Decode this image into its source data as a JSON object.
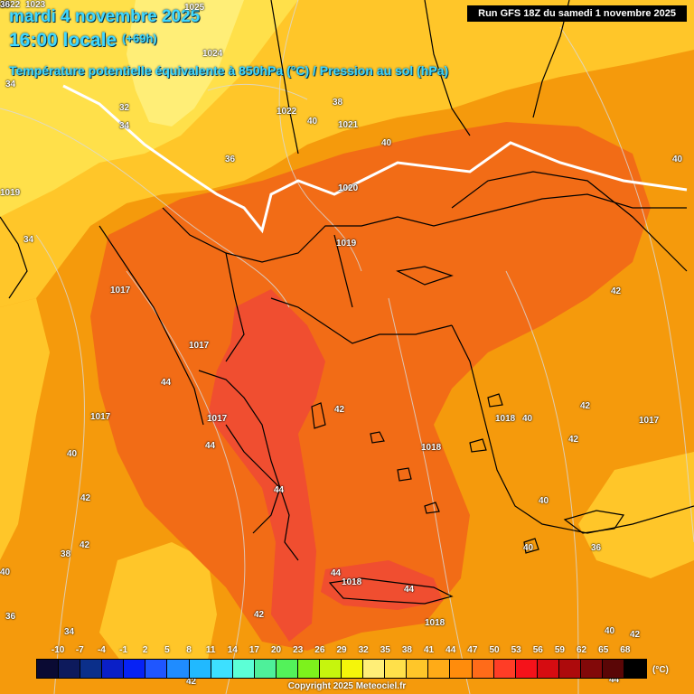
{
  "header": {
    "date": "mardi 4 novembre 2025",
    "time": "16:00 locale",
    "lead": "(+69h)",
    "subtitle": "Température potentielle équivalente à 850hPa (°C) / Pression au sol (hPa)"
  },
  "run_info": "Run GFS 18Z du samedi 1 novembre 2025",
  "labels": [
    {
      "text": "1022"
    },
    {
      "text": "1023"
    },
    {
      "text": "1025"
    },
    {
      "text": "1024"
    },
    {
      "text": "1022"
    },
    {
      "text": "1021"
    },
    {
      "text": "1020"
    },
    {
      "text": "1019"
    },
    {
      "text": "1019"
    },
    {
      "text": "1017"
    },
    {
      "text": "1017"
    },
    {
      "text": "1017"
    },
    {
      "text": "1017"
    },
    {
      "text": "1018"
    },
    {
      "text": "1018"
    },
    {
      "text": "1017"
    },
    {
      "text": "1018"
    },
    {
      "text": "1018"
    },
    {
      "text": "34"
    },
    {
      "text": "32"
    },
    {
      "text": "34"
    },
    {
      "text": "36"
    },
    {
      "text": "38"
    },
    {
      "text": "40"
    },
    {
      "text": "40"
    },
    {
      "text": "40"
    },
    {
      "text": "34"
    },
    {
      "text": "42"
    },
    {
      "text": "44"
    },
    {
      "text": "40"
    },
    {
      "text": "42"
    },
    {
      "text": "42"
    },
    {
      "text": "38"
    },
    {
      "text": "40"
    },
    {
      "text": "36"
    },
    {
      "text": "38"
    },
    {
      "text": "36"
    },
    {
      "text": "34"
    },
    {
      "text": "44"
    },
    {
      "text": "44"
    },
    {
      "text": "42"
    },
    {
      "text": "40"
    },
    {
      "text": "42"
    },
    {
      "text": "42"
    },
    {
      "text": "40"
    },
    {
      "text": "40"
    },
    {
      "text": "36"
    },
    {
      "text": "44"
    },
    {
      "text": "44"
    },
    {
      "text": "42"
    },
    {
      "text": "40"
    },
    {
      "text": "42"
    },
    {
      "text": "42"
    },
    {
      "text": "44"
    }
  ],
  "legend": {
    "values": [
      "-10",
      "-7",
      "-4",
      "-1",
      "2",
      "5",
      "8",
      "11",
      "14",
      "17",
      "20",
      "23",
      "26",
      "29",
      "32",
      "35",
      "38",
      "41",
      "44",
      "47",
      "50",
      "53",
      "56",
      "59",
      "62",
      "65",
      "68"
    ],
    "colors": [
      "#0a0a33",
      "#0d1a5c",
      "#0b2f8a",
      "#0a1fc7",
      "#0622f5",
      "#1f56ff",
      "#1f8cff",
      "#21b9ff",
      "#3de0ff",
      "#5cffd6",
      "#4ef09a",
      "#53f25a",
      "#7df21c",
      "#c6f50d",
      "#f5f50a",
      "#ffee77",
      "#ffe04a",
      "#ffc629",
      "#ffab17",
      "#ff8c0c",
      "#ff6b19",
      "#ff3d26",
      "#f5121a",
      "#d60c11",
      "#ad0a0c",
      "#820909",
      "#5a0606",
      "#000000"
    ],
    "unit": "(°C)"
  },
  "palette": {
    "yellow_light": "#ffee77",
    "yellow": "#ffe04a",
    "yellow_orange": "#ffc629",
    "orange": "#f59a0c",
    "orange_dark": "#f26c16",
    "red_orange": "#f04e30",
    "isobar": "#d9d9d9",
    "front": "#ffffff"
  },
  "copyright": "Copyright 2025 Meteociel.fr"
}
